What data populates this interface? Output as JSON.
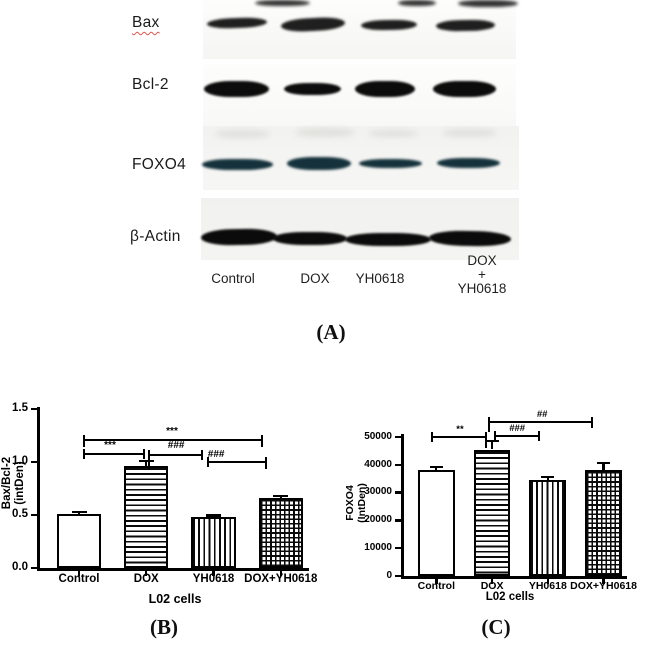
{
  "panel_a": {
    "caption": "(A)",
    "rows": [
      {
        "label": "Bax"
      },
      {
        "label": "Bcl-2"
      },
      {
        "label": "FOXO4"
      },
      {
        "label": "β-Actin"
      }
    ],
    "lane_labels": [
      "Control",
      "DOX",
      "YH0618"
    ],
    "lane4_lines": [
      "DOX",
      "+",
      "YH0618"
    ]
  },
  "chart_data": [
    {
      "type": "bar",
      "panel": "B",
      "caption": "(B)",
      "categories": [
        "Control",
        "DOX",
        "YH0618",
        "DOX+YH0618"
      ],
      "values": [
        0.51,
        0.96,
        0.48,
        0.66
      ],
      "errors": [
        0.015,
        0.05,
        0.015,
        0.02
      ],
      "bar_patterns": [
        "solid-white",
        "horizontal-stripes",
        "vertical-stripes",
        "grid"
      ],
      "ylabel_lines": [
        "Bax/Bcl-2",
        "(intDen)"
      ],
      "xlabel": "L02 cells",
      "ylim": [
        0,
        1.5
      ],
      "yticks": [
        0,
        0.5,
        1.0,
        1.5
      ],
      "ytick_labels": [
        "0.0",
        "0.5",
        "1.0",
        "1.5"
      ],
      "grid": "off",
      "legend": "none",
      "significance": [
        {
          "from": "Control",
          "to": "DOX+YH0618",
          "label": "***"
        },
        {
          "from": "Control",
          "to": "DOX",
          "label": "***"
        },
        {
          "from": "DOX",
          "to": "YH0618",
          "label": "###"
        },
        {
          "from": "YH0618",
          "to": "DOX+YH0618",
          "label": "###"
        }
      ]
    },
    {
      "type": "bar",
      "panel": "C",
      "caption": "(C)",
      "categories": [
        "Control",
        "DOX",
        "YH0618",
        "DOX+YH0618"
      ],
      "values": [
        38000,
        45500,
        34500,
        38000
      ],
      "errors": [
        1300,
        3000,
        1100,
        2600
      ],
      "bar_patterns": [
        "solid-white",
        "horizontal-stripes",
        "vertical-stripes",
        "grid"
      ],
      "ylabel_lines": [
        "FOXO4",
        "(IntDen)"
      ],
      "xlabel": "L02 cells",
      "ylim": [
        0,
        50000
      ],
      "yticks": [
        0,
        10000,
        20000,
        30000,
        40000,
        50000
      ],
      "ytick_labels": [
        "0",
        "10000",
        "20000",
        "30000",
        "40000",
        "50000"
      ],
      "grid": "off",
      "legend": "none",
      "significance": [
        {
          "from": "Control",
          "to": "DOX",
          "label": "**"
        },
        {
          "from": "DOX",
          "to": "YH0618",
          "label": "###"
        },
        {
          "from": "DOX",
          "to": "DOX+YH0618",
          "label": "##"
        }
      ]
    }
  ],
  "colors": {
    "ink": "#000000",
    "band_dark": "#0c0c0c",
    "foxo4_band": "#15323c",
    "spellcheck_red": "#e0564c",
    "background": "#ffffff"
  }
}
